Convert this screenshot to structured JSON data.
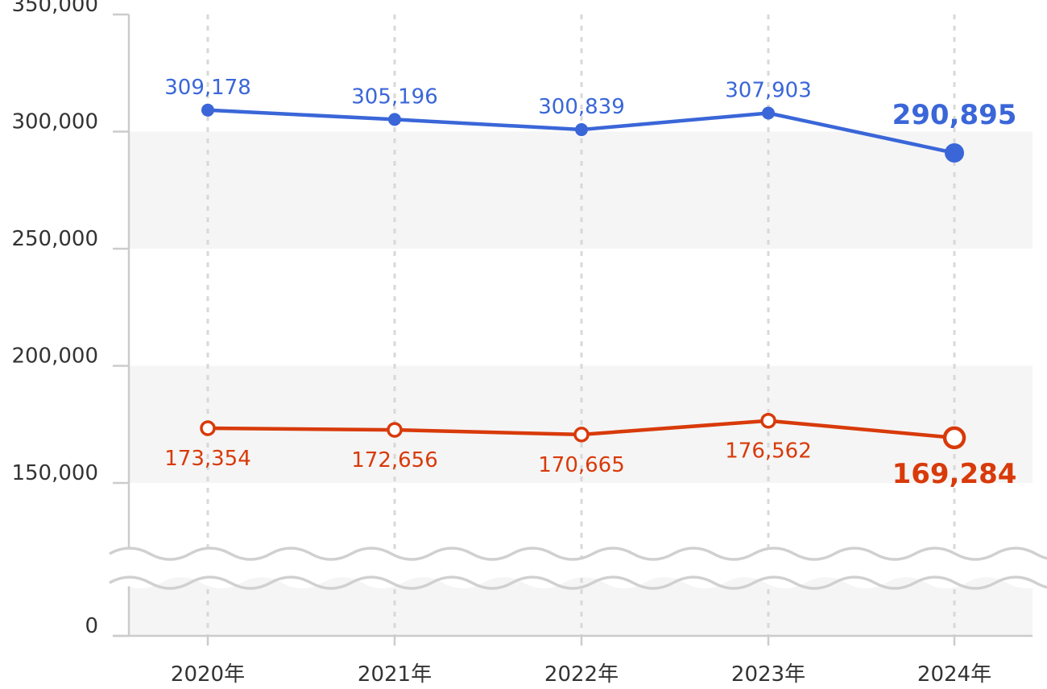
{
  "chart_data": {
    "type": "line",
    "categories": [
      "2020年",
      "2021年",
      "2022年",
      "2023年",
      "2024年"
    ],
    "series": [
      {
        "values": [
          309178,
          305196,
          300839,
          307903,
          290895
        ],
        "labels": [
          "309,178",
          "305,196",
          "300,839",
          "307,903",
          "290,895"
        ],
        "color": "#3a66d8",
        "marker": "filled"
      },
      {
        "values": [
          173354,
          172656,
          170665,
          176562,
          169284
        ],
        "labels": [
          "173,354",
          "172,656",
          "170,665",
          "176,562",
          "169,284"
        ],
        "color": "#d83a0a",
        "marker": "hollow"
      }
    ],
    "y_ticks": [
      {
        "value": 350000,
        "label": "350,000"
      },
      {
        "value": 300000,
        "label": "300,000"
      },
      {
        "value": 250000,
        "label": "250,000"
      },
      {
        "value": 200000,
        "label": "200,000"
      },
      {
        "value": 150000,
        "label": "150,000"
      },
      {
        "value": 0,
        "label": "0"
      }
    ],
    "ylim": [
      0,
      350000
    ],
    "axis_break": true,
    "grid": "vertical dashed",
    "band_color": "#f5f5f5",
    "grid_color": "#d8d8d8",
    "axis_color": "#cccccc"
  }
}
